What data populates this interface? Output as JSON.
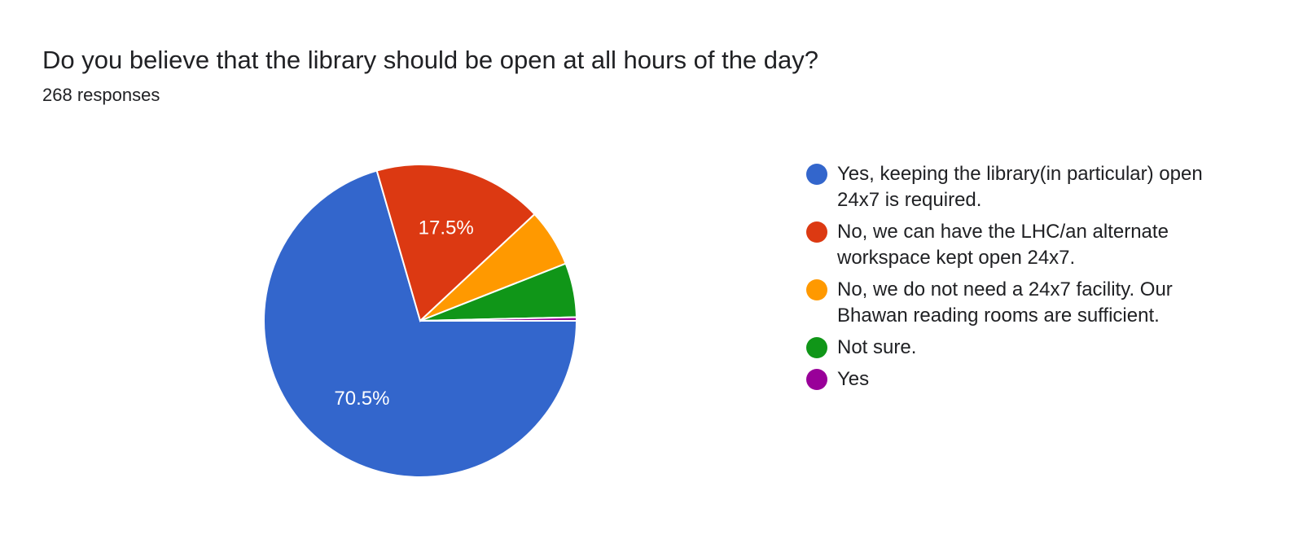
{
  "title": "Do you believe that the library should be open at all hours of the day?",
  "subtitle": "268 responses",
  "chart_data": {
    "type": "pie",
    "title": "Do you believe that the library should be open at all hours of the day?",
    "total_responses": 268,
    "legend_position": "right",
    "series": [
      {
        "name": "Yes, keeping the library(in particular) open 24x7 is required.",
        "value": 189,
        "percent": 70.5,
        "label": "70.5%",
        "color": "#3366cc"
      },
      {
        "name": "No, we can have the LHC/an alternate workspace kept open 24x7.",
        "value": 47,
        "percent": 17.5,
        "label": "17.5%",
        "color": "#dc3912"
      },
      {
        "name": "No, we do not need a 24x7 facility. Our Bhawan reading rooms are sufficient.",
        "value": 16,
        "percent": 6.0,
        "label": "",
        "color": "#ff9900"
      },
      {
        "name": "Not sure.",
        "value": 15,
        "percent": 5.6,
        "label": "",
        "color": "#109618"
      },
      {
        "name": "Yes",
        "value": 1,
        "percent": 0.4,
        "label": "",
        "color": "#990099"
      }
    ]
  }
}
